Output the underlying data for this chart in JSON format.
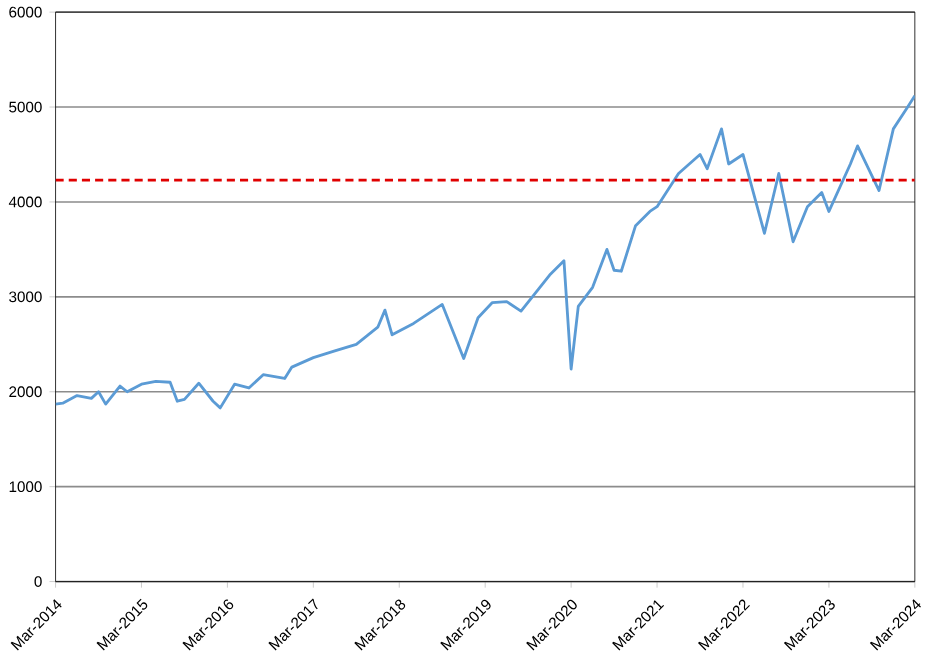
{
  "chart_data": {
    "type": "line",
    "x": [
      "2014-03",
      "2014-04",
      "2014-06",
      "2014-08",
      "2014-09",
      "2014-10",
      "2014-12",
      "2015-01",
      "2015-03",
      "2015-05",
      "2015-07",
      "2015-08",
      "2015-09",
      "2015-11",
      "2016-01",
      "2016-02",
      "2016-04",
      "2016-06",
      "2016-08",
      "2016-11",
      "2016-12",
      "2017-03",
      "2017-06",
      "2017-09",
      "2017-12",
      "2018-01",
      "2018-02",
      "2018-05",
      "2018-09",
      "2018-12",
      "2019-02",
      "2019-04",
      "2019-06",
      "2019-08",
      "2019-10",
      "2019-12",
      "2020-02",
      "2020-03",
      "2020-04",
      "2020-06",
      "2020-08",
      "2020-09",
      "2020-10",
      "2020-12",
      "2021-02",
      "2021-03",
      "2021-06",
      "2021-09",
      "2021-10",
      "2021-12",
      "2022-01",
      "2022-03",
      "2022-06",
      "2022-08",
      "2022-10",
      "2022-12",
      "2023-02",
      "2023-03",
      "2023-06",
      "2023-07",
      "2023-10",
      "2023-12",
      "2024-02",
      "2024-03"
    ],
    "series": [
      {
        "color": "#5b9bd5",
        "values": [
          1870,
          1880,
          1960,
          1930,
          2000,
          1870,
          2060,
          2000,
          2080,
          2110,
          2100,
          1900,
          1920,
          2090,
          1900,
          1830,
          2080,
          2040,
          2180,
          2140,
          2260,
          2360,
          2430,
          2500,
          2680,
          2860,
          2600,
          2720,
          2920,
          2350,
          2780,
          2940,
          2950,
          2850,
          3040,
          3230,
          3380,
          2240,
          2900,
          3100,
          3500,
          3280,
          3270,
          3750,
          3900,
          3950,
          4300,
          4500,
          4350,
          4770,
          4400,
          4500,
          3670,
          4300,
          3580,
          3950,
          4100,
          3900,
          4400,
          4590,
          4120,
          4770,
          5000,
          5120
        ]
      }
    ],
    "xlim": [
      "2014-03",
      "2024-03"
    ],
    "xticks": [
      {
        "value": "2014-03",
        "label": "Mar-2014"
      },
      {
        "value": "2015-03",
        "label": "Mar-2015"
      },
      {
        "value": "2016-03",
        "label": "Mar-2016"
      },
      {
        "value": "2017-03",
        "label": "Mar-2017"
      },
      {
        "value": "2018-03",
        "label": "Mar-2018"
      },
      {
        "value": "2019-03",
        "label": "Mar-2019"
      },
      {
        "value": "2020-03",
        "label": "Mar-2020"
      },
      {
        "value": "2021-03",
        "label": "Mar-2021"
      },
      {
        "value": "2022-03",
        "label": "Mar-2022"
      },
      {
        "value": "2023-03",
        "label": "Mar-2023"
      },
      {
        "value": "2024-03",
        "label": "Mar-2024"
      }
    ],
    "ylim": [
      0,
      6000
    ],
    "yticks": [
      0,
      1000,
      2000,
      3000,
      4000,
      5000,
      6000
    ],
    "grid": "y",
    "ref_lines": [
      {
        "axis": "y",
        "value": 4230,
        "color": "#e00000",
        "line_style": "dashed"
      }
    ]
  }
}
